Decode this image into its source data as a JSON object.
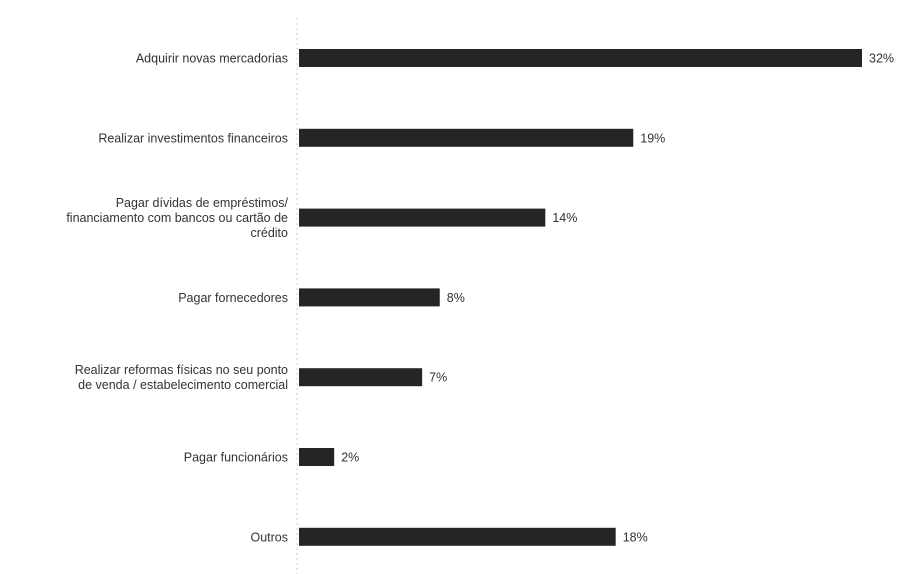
{
  "chart_data": {
    "type": "bar",
    "orientation": "horizontal",
    "categories": [
      [
        "Adquirir novas mercadorias"
      ],
      [
        "Realizar investimentos financeiros"
      ],
      [
        "Pagar dívidas de empréstimos/",
        "financiamento com bancos ou cartão de",
        "crédito"
      ],
      [
        "Pagar fornecedores"
      ],
      [
        "Realizar reformas físicas no seu ponto",
        "de venda / estabelecimento comercial"
      ],
      [
        "Pagar funcionários"
      ],
      [
        "Outros"
      ]
    ],
    "values": [
      32,
      19,
      14,
      8,
      7,
      2,
      18
    ],
    "value_labels": [
      "32%",
      "19%",
      "14%",
      "8%",
      "7%",
      "2%",
      "18%"
    ],
    "value_unit": "%",
    "xlim": [
      0,
      32
    ],
    "bar_color": "#252525",
    "grid": false,
    "legend": "none"
  }
}
